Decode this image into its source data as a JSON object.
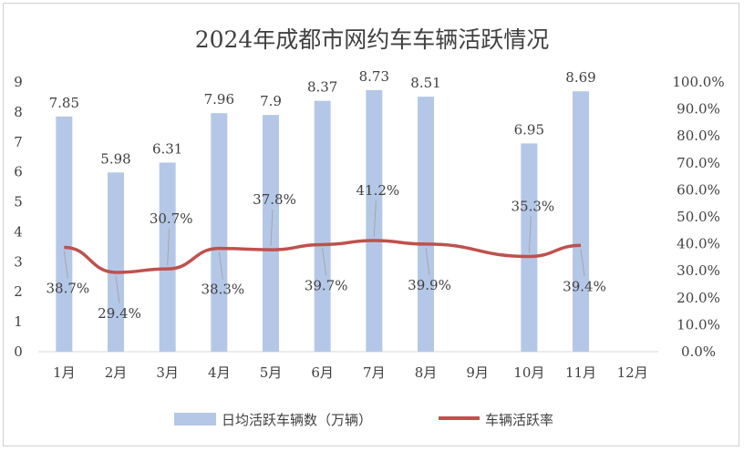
{
  "chart_data": {
    "type": "bar",
    "title": "2024年成都市网约车车辆活跃情况",
    "categories": [
      "1月",
      "2月",
      "3月",
      "4月",
      "5月",
      "6月",
      "7月",
      "8月",
      "9月",
      "10月",
      "11月",
      "12月"
    ],
    "series": [
      {
        "name": "日均活跃车辆数（万辆）",
        "type": "bar",
        "axis": "left",
        "color": "#b4c7e7",
        "values": [
          7.85,
          5.98,
          6.31,
          7.96,
          7.9,
          8.37,
          8.73,
          8.51,
          null,
          6.95,
          8.69,
          null
        ],
        "labels": [
          "7.85",
          "5.98",
          "6.31",
          "7.96",
          "7.9",
          "8.37",
          "8.73",
          "8.51",
          null,
          "6.95",
          "8.69",
          null
        ]
      },
      {
        "name": "车辆活跃率",
        "type": "line",
        "axis": "right",
        "color": "#c0504d",
        "values": [
          38.7,
          29.4,
          30.7,
          38.3,
          37.8,
          39.7,
          41.2,
          39.9,
          null,
          35.3,
          39.4,
          null
        ],
        "labels": [
          "38.7%",
          "29.4%",
          "30.7%",
          "38.3%",
          "37.8%",
          "39.7%",
          "41.2%",
          "39.9%",
          null,
          "35.3%",
          "39.4%",
          null
        ],
        "label_side": [
          "below",
          "below",
          "above",
          "below",
          "above",
          "below",
          "above",
          "below",
          null,
          "above",
          "below",
          null
        ]
      }
    ],
    "y_left": {
      "ylim": [
        0,
        9
      ],
      "ticks": [
        "0",
        "1",
        "2",
        "3",
        "4",
        "5",
        "6",
        "7",
        "8",
        "9"
      ]
    },
    "y_right": {
      "ylim": [
        0,
        100
      ],
      "ticks": [
        "0.0%",
        "10.0%",
        "20.0%",
        "30.0%",
        "40.0%",
        "50.0%",
        "60.0%",
        "70.0%",
        "80.0%",
        "90.0%",
        "100.0%"
      ]
    },
    "grid": false,
    "legend": "bottom"
  }
}
